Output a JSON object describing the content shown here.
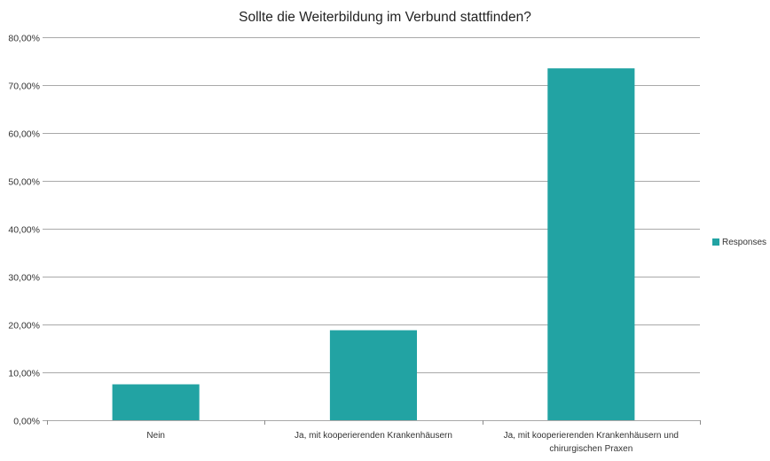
{
  "chart_data": {
    "type": "bar",
    "title": "Sollte die Weiterbildung im Verbund stattfinden?",
    "categories": [
      [
        "Nein"
      ],
      [
        "Ja, mit kooperierenden Krankenhäusern"
      ],
      [
        "Ja, mit kooperierenden Krankenhäusern und",
        "chirurgischen Praxen"
      ]
    ],
    "series": [
      {
        "name": "Responses",
        "values": [
          7.5,
          18.8,
          73.5
        ]
      }
    ],
    "ylim": [
      0,
      80
    ],
    "yticks": [
      "0,00%",
      "10,00%",
      "20,00%",
      "30,00%",
      "40,00%",
      "50,00%",
      "60,00%",
      "70,00%",
      "80,00%"
    ],
    "grid": true,
    "legend_position": "right",
    "colors": {
      "bar": "#22a3a3"
    }
  }
}
